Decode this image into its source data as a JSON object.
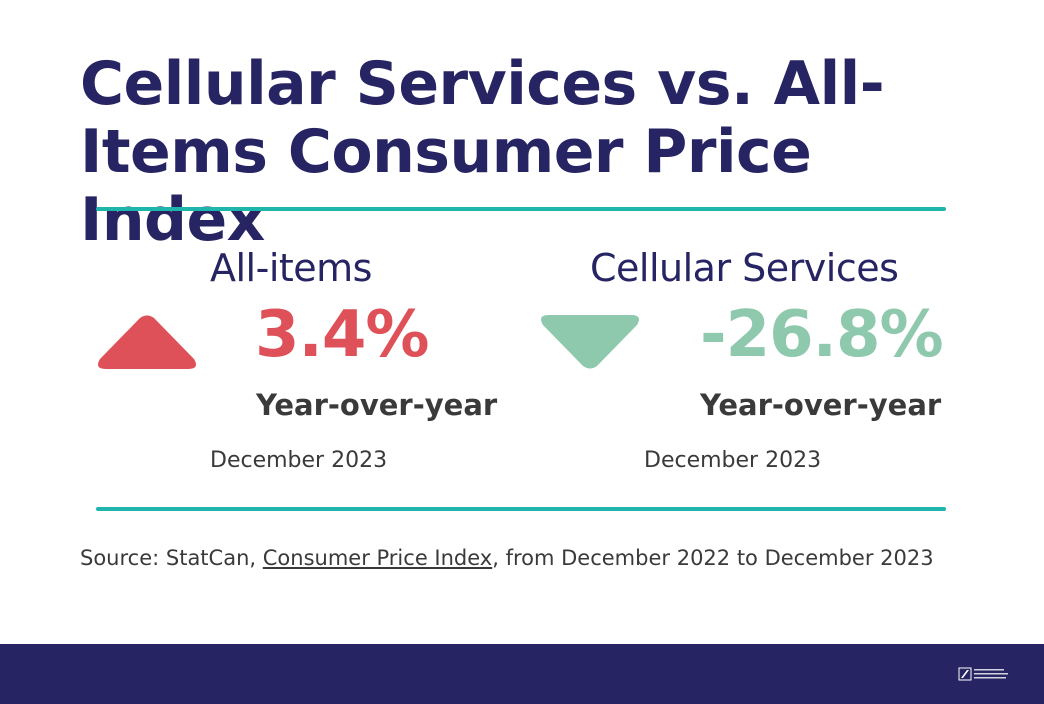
{
  "title": "Cellular Services vs. All-Items Consumer Price Index",
  "colors": {
    "title": "#262462",
    "rule": "#1fb5ad",
    "increase": "#df5158",
    "decrease": "#8fc9ad",
    "footer": "#262462"
  },
  "panels": {
    "left": {
      "label": "All-items",
      "value": "3.4%",
      "direction": "up",
      "icon": "triangle-up-icon",
      "period_label": "Year-over-year",
      "date": "December 2023"
    },
    "right": {
      "label": "Cellular Services",
      "value": "-26.8%",
      "direction": "down",
      "icon": "triangle-down-icon",
      "period_label": "Year-over-year",
      "date": "December 2023"
    }
  },
  "source": {
    "prefix": "Source: StatCan, ",
    "link_text": "Consumer Price Index",
    "suffix": ", from December 2022 to December 2023"
  },
  "footer": {
    "logo_icon": "organization-logo-icon"
  }
}
